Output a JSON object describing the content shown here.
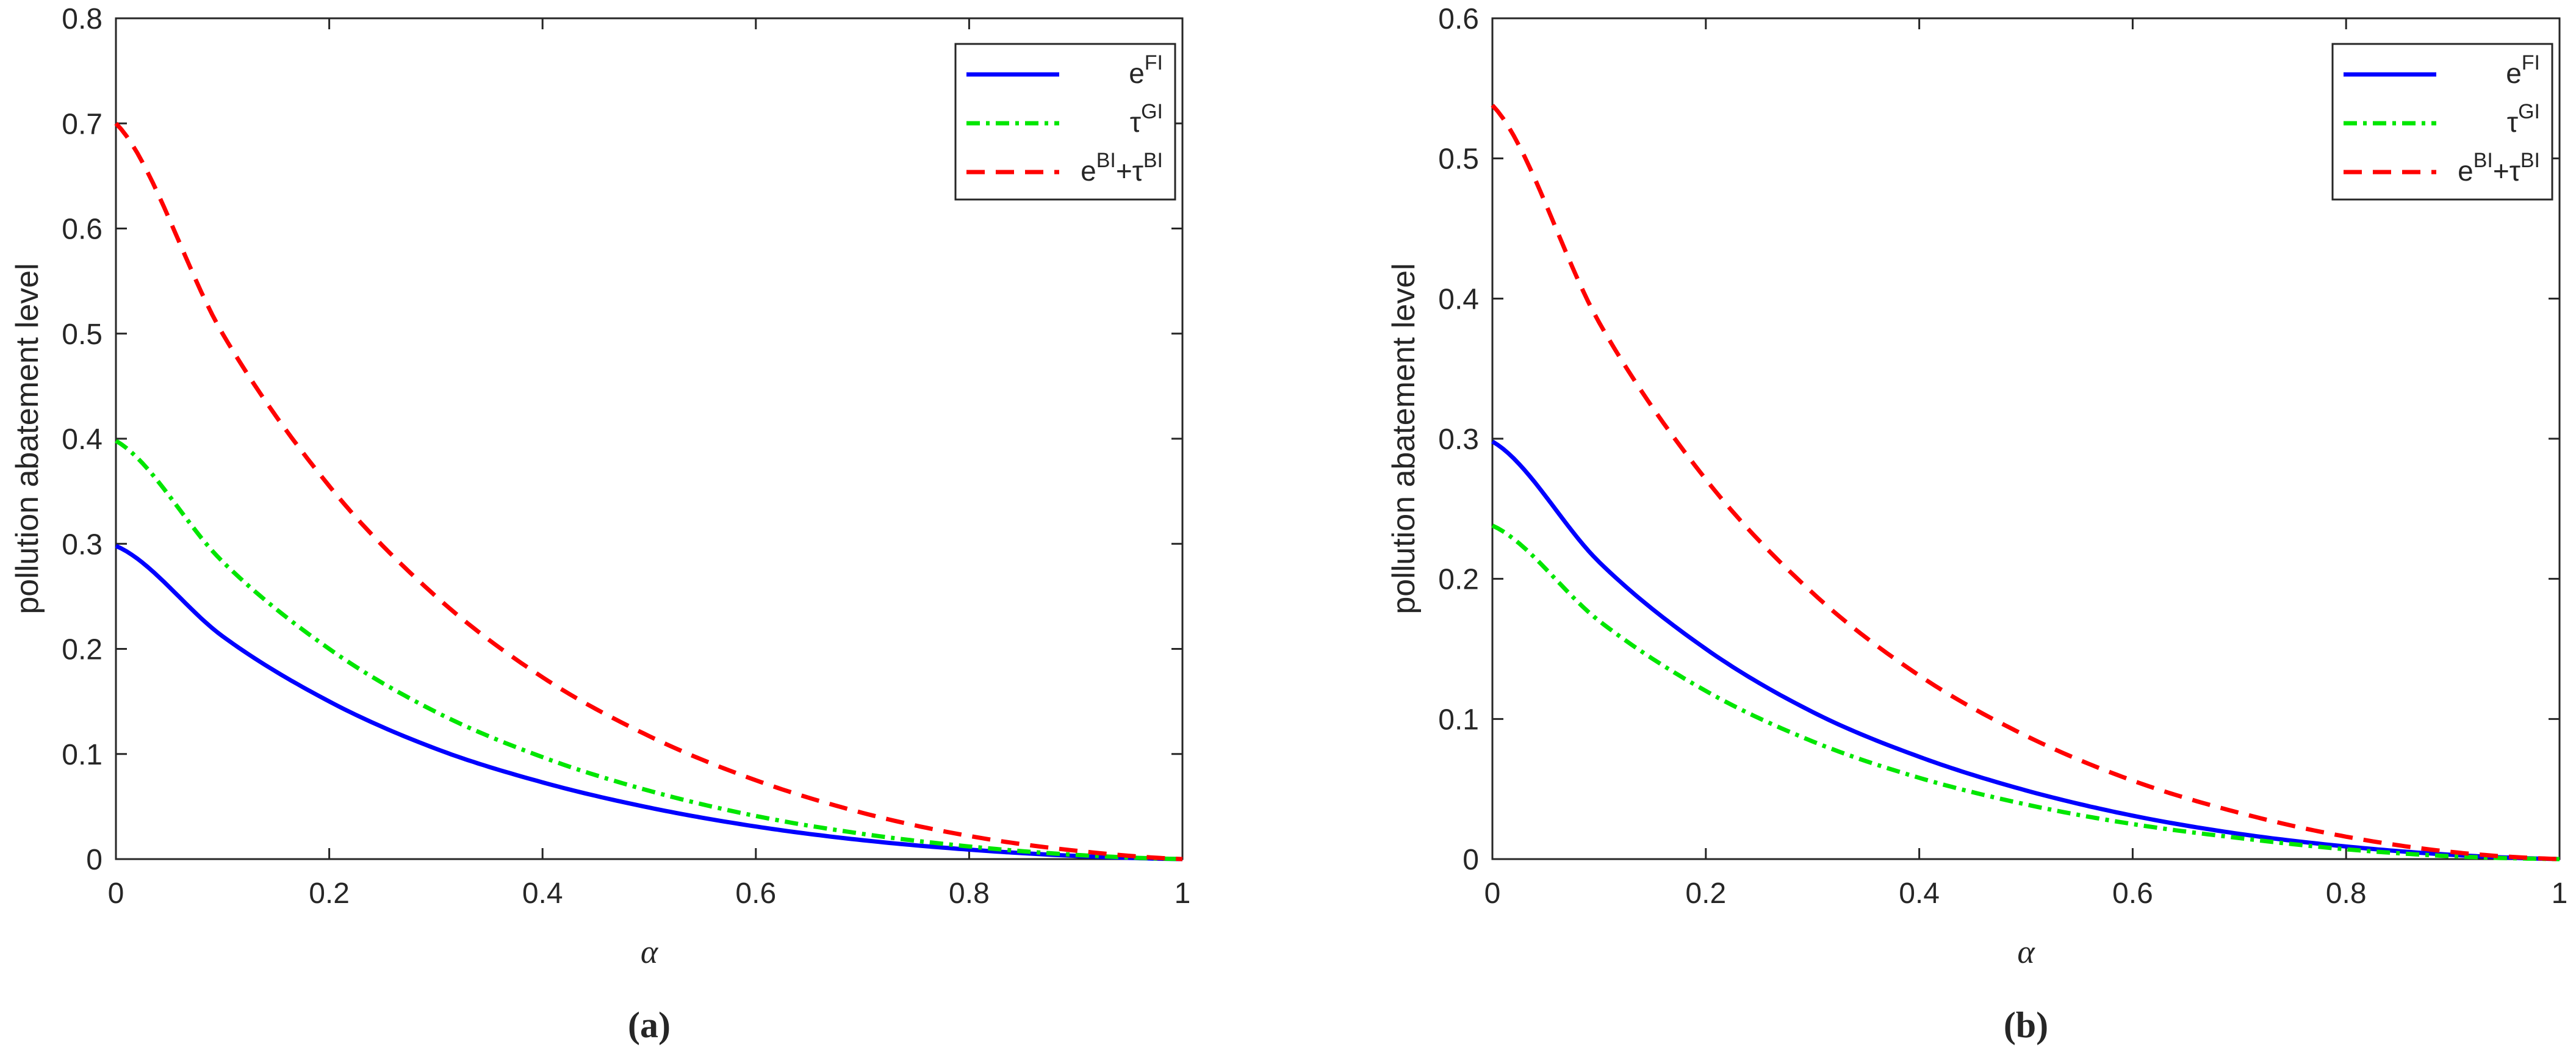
{
  "chart_data": [
    {
      "type": "line",
      "panel_label": "(a)",
      "xlabel": "α",
      "ylabel": "pollution abatement level",
      "xlim": [
        0,
        1
      ],
      "ylim": [
        0,
        0.8
      ],
      "xticks": [
        0,
        0.2,
        0.4,
        0.6,
        0.8,
        1
      ],
      "xtick_labels": [
        "0",
        "0.2",
        "0.4",
        "0.6",
        "0.8",
        "1"
      ],
      "yticks": [
        0,
        0.1,
        0.2,
        0.3,
        0.4,
        0.5,
        0.6,
        0.7,
        0.8
      ],
      "ytick_labels": [
        "0",
        "0.1",
        "0.2",
        "0.3",
        "0.4",
        "0.5",
        "0.6",
        "0.7",
        "0.8"
      ],
      "legend_position": "top-right",
      "x": [
        0,
        0.1,
        0.2,
        0.3,
        0.4,
        0.5,
        0.6,
        0.7,
        0.8,
        0.9,
        1.0
      ],
      "series": [
        {
          "name": "e^FI",
          "legend": {
            "base": "e",
            "sup": "FI"
          },
          "color": "#0000ff",
          "style": "solid",
          "values": [
            0.298,
            0.212,
            0.15,
            0.105,
            0.073,
            0.049,
            0.031,
            0.018,
            0.009,
            0.003,
            0.0
          ]
        },
        {
          "name": "τ^GI",
          "legend": {
            "base": "τ",
            "sup": "GI"
          },
          "color": "#00e600",
          "style": "dashdot",
          "values": [
            0.398,
            0.283,
            0.2,
            0.14,
            0.097,
            0.065,
            0.041,
            0.024,
            0.012,
            0.004,
            0.0
          ]
        },
        {
          "name": "e^BI+τ^BI",
          "legend": {
            "base": "e",
            "sup": "BI",
            "plus": "+",
            "base2": "τ",
            "sup2": "BI"
          },
          "color": "#ff0000",
          "style": "dashed",
          "values": [
            0.7,
            0.5,
            0.355,
            0.25,
            0.173,
            0.117,
            0.075,
            0.044,
            0.022,
            0.008,
            0.0
          ]
        }
      ]
    },
    {
      "type": "line",
      "panel_label": "(b)",
      "xlabel": "α",
      "ylabel": "pollution abatement level",
      "xlim": [
        0,
        1
      ],
      "ylim": [
        0,
        0.6
      ],
      "xticks": [
        0,
        0.2,
        0.4,
        0.6,
        0.8,
        1
      ],
      "xtick_labels": [
        "0",
        "0.2",
        "0.4",
        "0.6",
        "0.8",
        "1"
      ],
      "yticks": [
        0,
        0.1,
        0.2,
        0.3,
        0.4,
        0.5,
        0.6
      ],
      "ytick_labels": [
        "0",
        "0.1",
        "0.2",
        "0.3",
        "0.4",
        "0.5",
        "0.6"
      ],
      "legend_position": "top-right",
      "x": [
        0,
        0.1,
        0.2,
        0.3,
        0.4,
        0.5,
        0.6,
        0.7,
        0.8,
        0.9,
        1.0
      ],
      "series": [
        {
          "name": "e^FI",
          "legend": {
            "base": "e",
            "sup": "FI"
          },
          "color": "#0000ff",
          "style": "solid",
          "values": [
            0.298,
            0.212,
            0.15,
            0.105,
            0.073,
            0.049,
            0.031,
            0.018,
            0.009,
            0.003,
            0.0
          ]
        },
        {
          "name": "τ^GI",
          "legend": {
            "base": "τ",
            "sup": "GI"
          },
          "color": "#00e600",
          "style": "dashdot",
          "values": [
            0.238,
            0.17,
            0.12,
            0.084,
            0.058,
            0.039,
            0.025,
            0.015,
            0.007,
            0.002,
            0.0
          ]
        },
        {
          "name": "e^BI+τ^BI",
          "legend": {
            "base": "e",
            "sup": "BI",
            "plus": "+",
            "base2": "τ",
            "sup2": "BI"
          },
          "color": "#ff0000",
          "style": "dashed",
          "values": [
            0.538,
            0.383,
            0.271,
            0.19,
            0.131,
            0.088,
            0.056,
            0.033,
            0.016,
            0.005,
            0.0
          ]
        }
      ]
    }
  ]
}
